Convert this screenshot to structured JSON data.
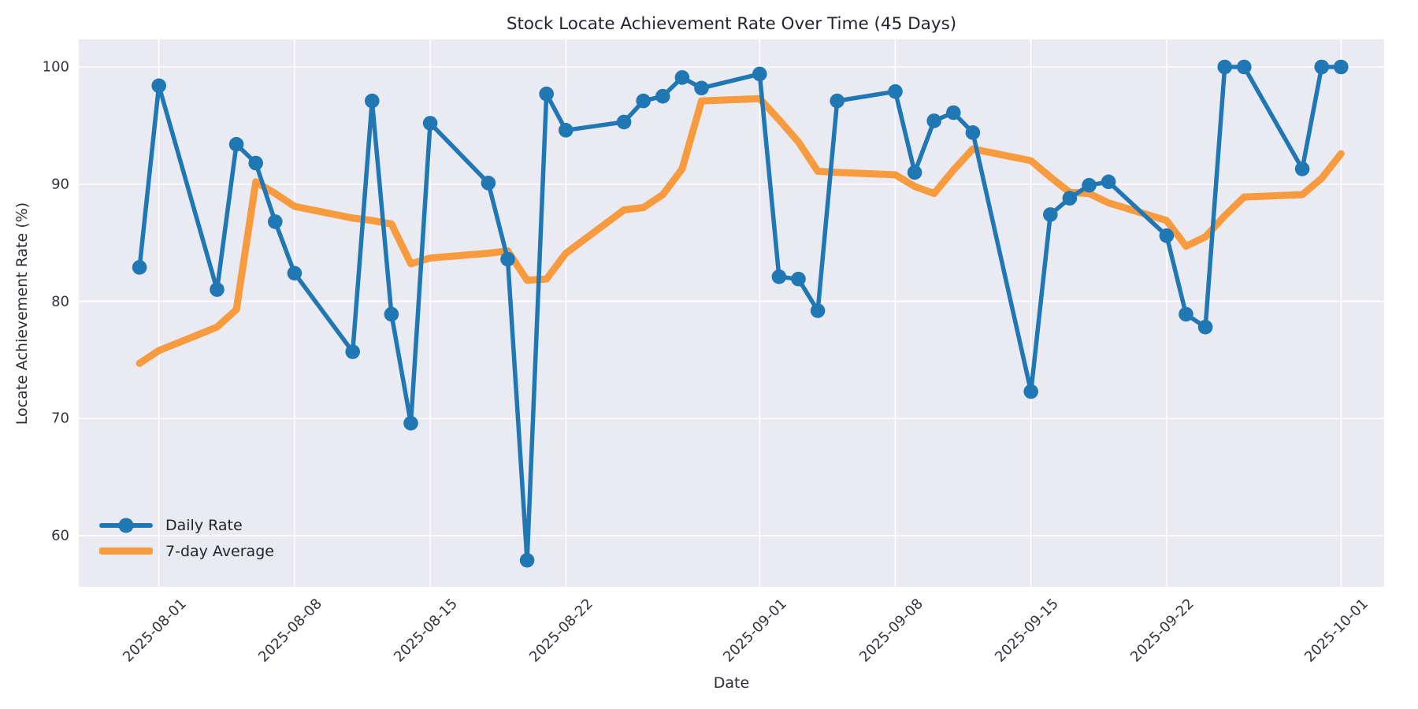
{
  "title": "Stock Locate Achievement Rate Over Time (45 Days)",
  "xlabel": "Date",
  "ylabel": "Locate Achievement Rate (%)",
  "colors": {
    "daily": "#1f77b4",
    "average": "#f89a3e",
    "plot_background": "#eaeaf2",
    "gridline": "#ffffff",
    "text": "#262630"
  },
  "legend": {
    "position": "lower left",
    "items": [
      {
        "label": "Daily Rate",
        "color": "#1f77b4",
        "marker": "circle"
      },
      {
        "label": "7-day Average",
        "color": "#f89a3e",
        "marker": "none"
      }
    ]
  },
  "chart_data": {
    "type": "line",
    "title": "Stock Locate Achievement Rate Over Time (45 Days)",
    "xlabel": "Date",
    "ylabel": "Locate Achievement Rate (%)",
    "grid": true,
    "legend_position": "lower left",
    "ylim": [
      55.8,
      102.1
    ],
    "xlim": [
      "2025-07-28",
      "2025-10-03"
    ],
    "yticks": [
      60,
      70,
      80,
      90,
      100
    ],
    "xticks": [
      "2025-08-01",
      "2025-08-08",
      "2025-08-15",
      "2025-08-22",
      "2025-09-01",
      "2025-09-08",
      "2025-09-15",
      "2025-09-22",
      "2025-10-01"
    ],
    "x": [
      "2025-07-31",
      "2025-08-01",
      "2025-08-04",
      "2025-08-05",
      "2025-08-06",
      "2025-08-07",
      "2025-08-08",
      "2025-08-11",
      "2025-08-12",
      "2025-08-13",
      "2025-08-14",
      "2025-08-15",
      "2025-08-18",
      "2025-08-19",
      "2025-08-20",
      "2025-08-21",
      "2025-08-22",
      "2025-08-25",
      "2025-08-26",
      "2025-08-27",
      "2025-08-28",
      "2025-08-29",
      "2025-09-01",
      "2025-09-02",
      "2025-09-03",
      "2025-09-04",
      "2025-09-05",
      "2025-09-08",
      "2025-09-09",
      "2025-09-10",
      "2025-09-11",
      "2025-09-12",
      "2025-09-15",
      "2025-09-16",
      "2025-09-17",
      "2025-09-18",
      "2025-09-19",
      "2025-09-22",
      "2025-09-23",
      "2025-09-24",
      "2025-09-25",
      "2025-09-26",
      "2025-09-29",
      "2025-09-30",
      "2025-10-01"
    ],
    "series": [
      {
        "name": "Daily Rate",
        "marker": "circle",
        "values": [
          82.9,
          98.4,
          81.0,
          93.4,
          91.8,
          86.8,
          82.4,
          75.7,
          97.1,
          78.9,
          69.6,
          95.2,
          90.1,
          83.6,
          57.9,
          97.7,
          94.6,
          95.3,
          97.1,
          97.5,
          99.1,
          98.2,
          99.4,
          82.1,
          81.9,
          79.2,
          97.1,
          97.9,
          91.0,
          95.4,
          96.1,
          94.4,
          72.3,
          87.4,
          88.8,
          89.9,
          90.2,
          85.6,
          78.9,
          77.8,
          100.0,
          100.0,
          91.3,
          100.0,
          100.0
        ]
      },
      {
        "name": "7-day Average",
        "marker": "none",
        "values": [
          74.7,
          75.8,
          77.8,
          79.3,
          90.2,
          89.2,
          88.1,
          87.1,
          86.9,
          86.6,
          83.2,
          83.7,
          84.1,
          84.3,
          81.8,
          81.9,
          84.1,
          87.8,
          88.0,
          89.1,
          91.3,
          97.1,
          97.3,
          95.5,
          93.6,
          91.1,
          91.0,
          90.8,
          89.8,
          89.2,
          91.2,
          93.0,
          92.0,
          90.6,
          89.3,
          89.2,
          88.4,
          86.9,
          84.7,
          85.5,
          87.3,
          88.9,
          89.1,
          90.5,
          92.6
        ]
      }
    ]
  }
}
